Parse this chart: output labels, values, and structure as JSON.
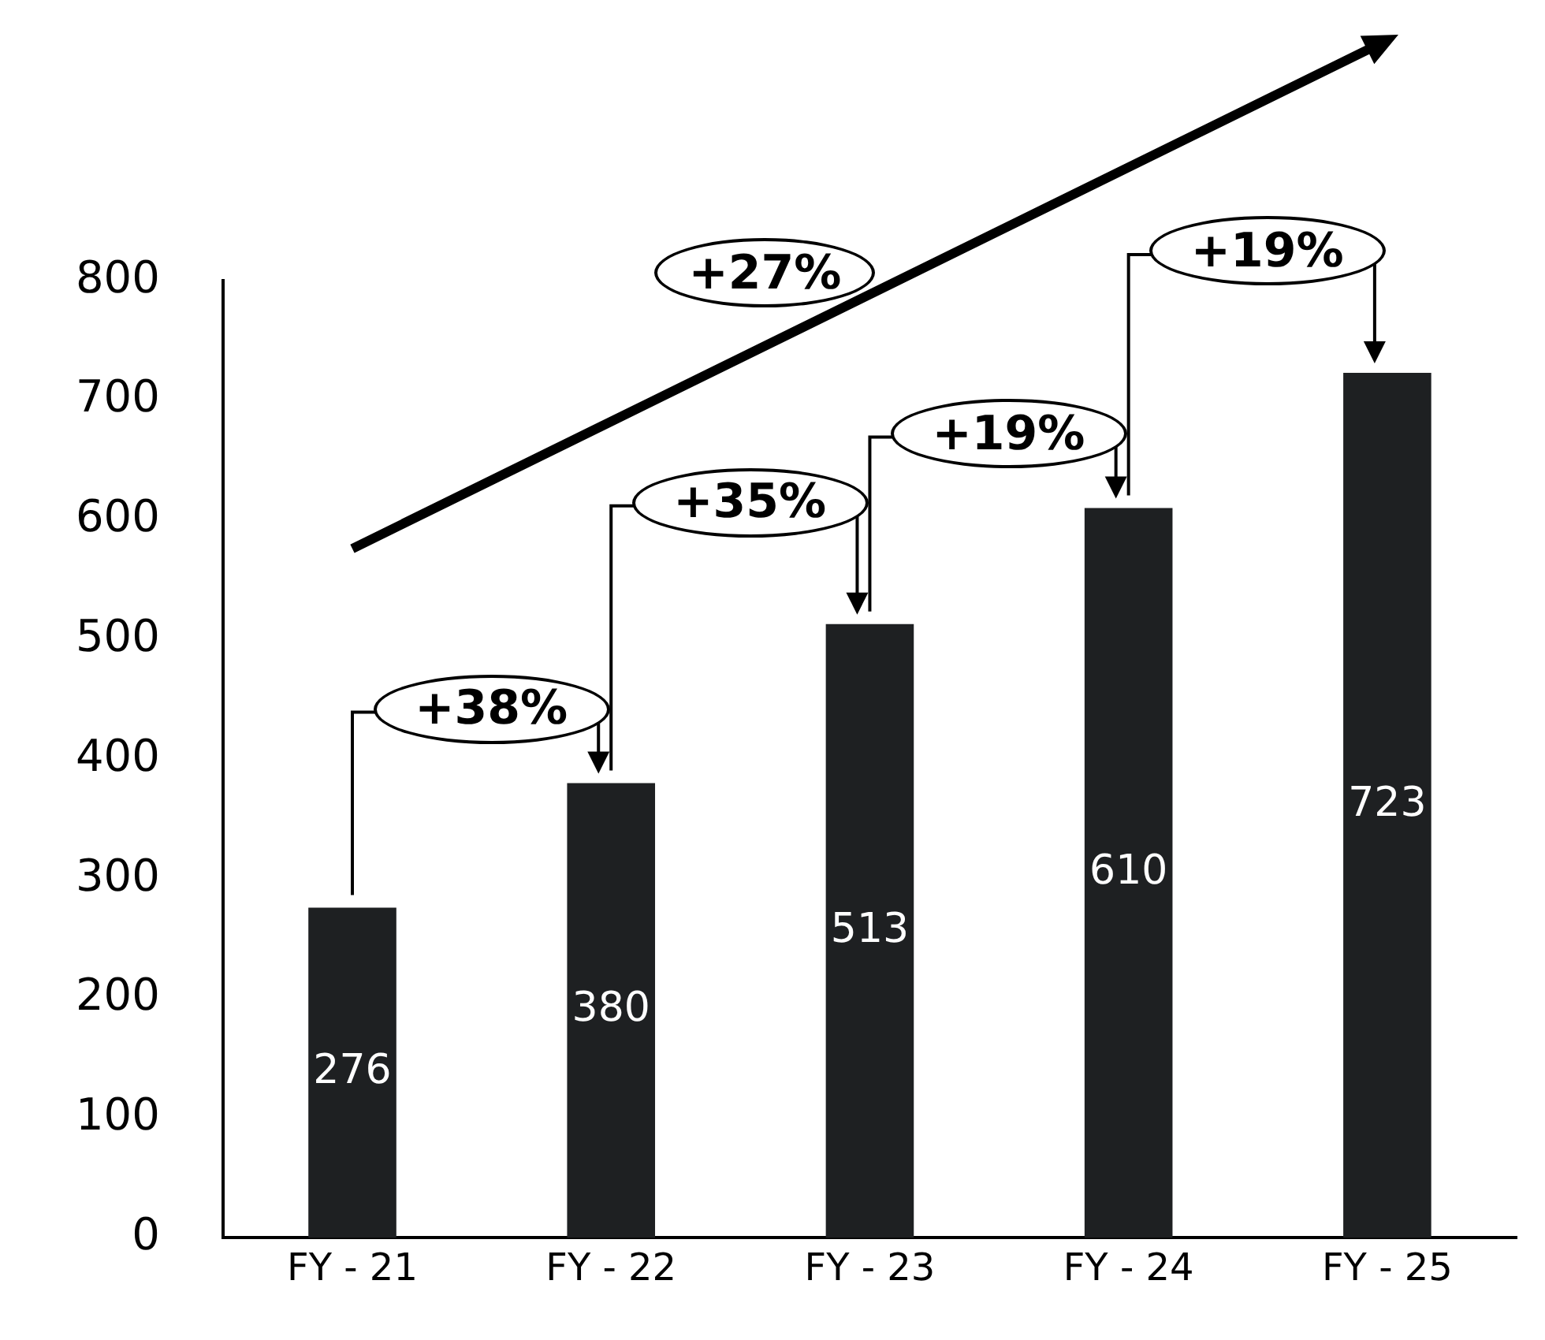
{
  "chart_data": {
    "type": "bar",
    "categories": [
      "FY - 21",
      "FY - 22",
      "FY - 23",
      "FY - 24",
      "FY - 25"
    ],
    "values": [
      276,
      380,
      513,
      610,
      723
    ],
    "color": "#1e2022",
    "ylim": [
      0,
      800
    ],
    "yticks": [
      0,
      100,
      200,
      300,
      400,
      500,
      600,
      700,
      800
    ],
    "grid": false,
    "data_labels": true,
    "annotations": [
      "+38%",
      "+35%",
      "+19%",
      "+19%",
      "+27%"
    ]
  }
}
